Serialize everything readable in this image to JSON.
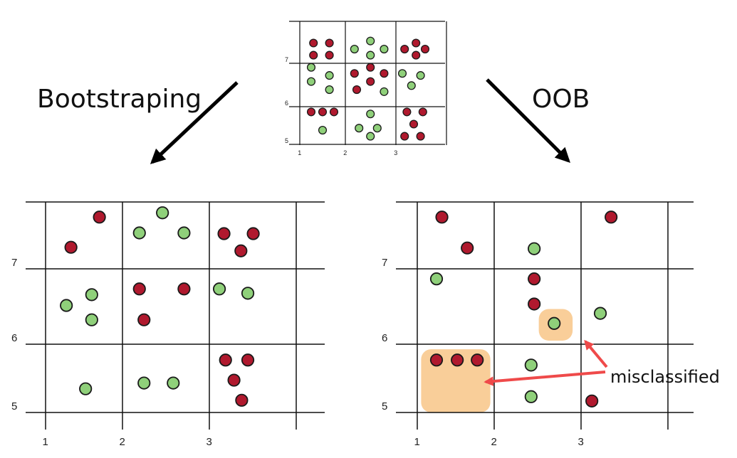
{
  "labels": {
    "bootstrapping": "Bootstraping",
    "oob": "OOB",
    "misclassified": "misclassified"
  },
  "colors": {
    "red": "#b0192e",
    "green": "#8fd07a",
    "highlight": "#f8c98e",
    "callout_arrow": "#ef4a4a",
    "grid": "#111111"
  },
  "panels": {
    "original": {
      "x_ticks": [
        "1",
        "2",
        "3"
      ],
      "y_ticks": [
        "5",
        "6",
        "7"
      ],
      "points": [
        {
          "x": 1.3,
          "y": 7.5,
          "c": "red"
        },
        {
          "x": 1.65,
          "y": 7.5,
          "c": "red"
        },
        {
          "x": 1.3,
          "y": 7.2,
          "c": "red"
        },
        {
          "x": 1.65,
          "y": 7.2,
          "c": "red"
        },
        {
          "x": 2.2,
          "y": 7.35,
          "c": "green"
        },
        {
          "x": 2.55,
          "y": 7.55,
          "c": "green"
        },
        {
          "x": 2.85,
          "y": 7.35,
          "c": "green"
        },
        {
          "x": 2.55,
          "y": 7.2,
          "c": "green"
        },
        {
          "x": 3.3,
          "y": 7.35,
          "c": "red"
        },
        {
          "x": 3.55,
          "y": 7.5,
          "c": "red"
        },
        {
          "x": 3.75,
          "y": 7.35,
          "c": "red"
        },
        {
          "x": 3.55,
          "y": 7.2,
          "c": "red"
        },
        {
          "x": 1.25,
          "y": 6.9,
          "c": "green"
        },
        {
          "x": 1.65,
          "y": 6.7,
          "c": "green"
        },
        {
          "x": 1.25,
          "y": 6.55,
          "c": "green"
        },
        {
          "x": 1.65,
          "y": 6.35,
          "c": "green"
        },
        {
          "x": 2.2,
          "y": 6.75,
          "c": "red"
        },
        {
          "x": 2.55,
          "y": 6.9,
          "c": "red"
        },
        {
          "x": 2.85,
          "y": 6.75,
          "c": "red"
        },
        {
          "x": 2.55,
          "y": 6.55,
          "c": "red"
        },
        {
          "x": 2.25,
          "y": 6.35,
          "c": "red"
        },
        {
          "x": 2.85,
          "y": 6.3,
          "c": "green"
        },
        {
          "x": 3.25,
          "y": 6.75,
          "c": "green"
        },
        {
          "x": 3.65,
          "y": 6.7,
          "c": "green"
        },
        {
          "x": 3.45,
          "y": 6.45,
          "c": "green"
        },
        {
          "x": 1.25,
          "y": 5.8,
          "c": "red"
        },
        {
          "x": 1.5,
          "y": 5.8,
          "c": "red"
        },
        {
          "x": 1.75,
          "y": 5.8,
          "c": "red"
        },
        {
          "x": 1.5,
          "y": 5.35,
          "c": "green"
        },
        {
          "x": 2.55,
          "y": 5.75,
          "c": "green"
        },
        {
          "x": 2.3,
          "y": 5.4,
          "c": "green"
        },
        {
          "x": 2.7,
          "y": 5.4,
          "c": "green"
        },
        {
          "x": 2.55,
          "y": 5.2,
          "c": "green"
        },
        {
          "x": 3.35,
          "y": 5.8,
          "c": "red"
        },
        {
          "x": 3.7,
          "y": 5.8,
          "c": "red"
        },
        {
          "x": 3.5,
          "y": 5.5,
          "c": "red"
        },
        {
          "x": 3.3,
          "y": 5.2,
          "c": "red"
        },
        {
          "x": 3.65,
          "y": 5.2,
          "c": "red"
        }
      ]
    },
    "bootstrap": {
      "x_ticks": [
        "1",
        "2",
        "3"
      ],
      "y_ticks": [
        "5",
        "6",
        "7"
      ],
      "points": [
        {
          "x": 1.7,
          "y": 7.72,
          "c": "red"
        },
        {
          "x": 1.33,
          "y": 7.3,
          "c": "red"
        },
        {
          "x": 2.22,
          "y": 7.5,
          "c": "green"
        },
        {
          "x": 2.52,
          "y": 7.78,
          "c": "green"
        },
        {
          "x": 2.8,
          "y": 7.5,
          "c": "green"
        },
        {
          "x": 3.32,
          "y": 7.49,
          "c": "red"
        },
        {
          "x": 3.54,
          "y": 7.25,
          "c": "red"
        },
        {
          "x": 3.7,
          "y": 7.49,
          "c": "red"
        },
        {
          "x": 1.27,
          "y": 6.49,
          "c": "green"
        },
        {
          "x": 1.6,
          "y": 6.64,
          "c": "green"
        },
        {
          "x": 1.6,
          "y": 6.29,
          "c": "green"
        },
        {
          "x": 2.22,
          "y": 6.72,
          "c": "red"
        },
        {
          "x": 2.8,
          "y": 6.72,
          "c": "red"
        },
        {
          "x": 2.28,
          "y": 6.29,
          "c": "red"
        },
        {
          "x": 3.26,
          "y": 6.72,
          "c": "green"
        },
        {
          "x": 3.63,
          "y": 6.66,
          "c": "green"
        },
        {
          "x": 1.52,
          "y": 5.33,
          "c": "green"
        },
        {
          "x": 2.28,
          "y": 5.41,
          "c": "green"
        },
        {
          "x": 2.66,
          "y": 5.41,
          "c": "green"
        },
        {
          "x": 3.34,
          "y": 5.73,
          "c": "red"
        },
        {
          "x": 3.63,
          "y": 5.73,
          "c": "red"
        },
        {
          "x": 3.45,
          "y": 5.45,
          "c": "red"
        },
        {
          "x": 3.55,
          "y": 5.17,
          "c": "red"
        }
      ]
    },
    "oob": {
      "x_ticks": [
        "1",
        "2",
        "3"
      ],
      "y_ticks": [
        "5",
        "6",
        "7"
      ],
      "points": [
        {
          "x": 1.32,
          "y": 7.72,
          "c": "red"
        },
        {
          "x": 3.52,
          "y": 7.72,
          "c": "red"
        },
        {
          "x": 1.65,
          "y": 7.29,
          "c": "red"
        },
        {
          "x": 2.52,
          "y": 7.28,
          "c": "green"
        },
        {
          "x": 1.25,
          "y": 6.86,
          "c": "green"
        },
        {
          "x": 2.52,
          "y": 6.86,
          "c": "red"
        },
        {
          "x": 2.52,
          "y": 6.51,
          "c": "red"
        },
        {
          "x": 3.38,
          "y": 6.38,
          "c": "green"
        },
        {
          "x": 2.78,
          "y": 6.24,
          "c": "green"
        },
        {
          "x": 1.25,
          "y": 5.73,
          "c": "red"
        },
        {
          "x": 1.52,
          "y": 5.73,
          "c": "red"
        },
        {
          "x": 1.78,
          "y": 5.73,
          "c": "red"
        },
        {
          "x": 2.48,
          "y": 5.66,
          "c": "green"
        },
        {
          "x": 2.48,
          "y": 5.22,
          "c": "green"
        },
        {
          "x": 3.27,
          "y": 5.16,
          "c": "red"
        }
      ],
      "highlights": [
        {
          "x0": 1.05,
          "x1": 1.95,
          "y0": 5.0,
          "y1": 5.88
        },
        {
          "x0": 2.58,
          "x1": 3.02,
          "y0": 6.0,
          "y1": 6.44
        }
      ]
    }
  }
}
